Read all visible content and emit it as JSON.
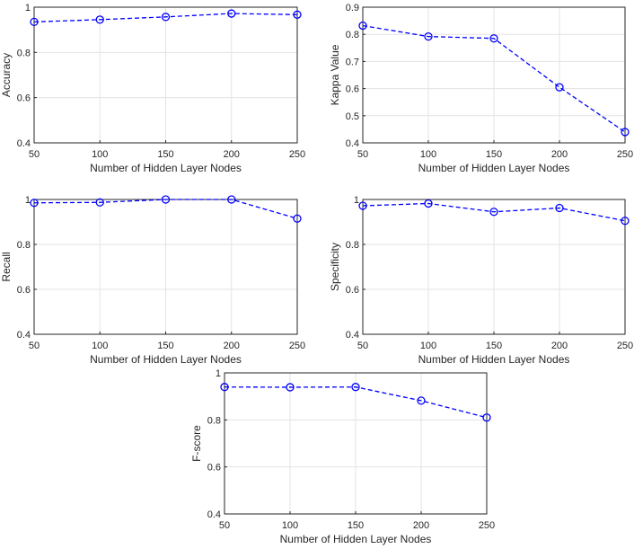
{
  "chart_data": [
    {
      "type": "line",
      "title": "",
      "xlabel": "Number of Hidden Layer Nodes",
      "ylabel": "Accuracy",
      "x": [
        50,
        100,
        150,
        200,
        250
      ],
      "xticks": [
        "50",
        "100",
        "150",
        "200",
        "250"
      ],
      "yticks": [
        "0.4",
        "0.6",
        "0.8",
        "1"
      ],
      "ytick_values": [
        0.4,
        0.6,
        0.8,
        1.0
      ],
      "ylim": [
        0.4,
        1.0
      ],
      "xlim": [
        50,
        250
      ],
      "grid": true,
      "series": [
        {
          "name": "Accuracy",
          "values": [
            0.935,
            0.945,
            0.957,
            0.972,
            0.967
          ]
        }
      ],
      "color": "#0000ff",
      "marker": "circle",
      "linestyle": "dashed"
    },
    {
      "type": "line",
      "title": "",
      "xlabel": "Number of Hidden Layer Nodes",
      "ylabel": "Kappa Value",
      "x": [
        50,
        100,
        150,
        200,
        250
      ],
      "xticks": [
        "50",
        "100",
        "150",
        "200",
        "250"
      ],
      "yticks": [
        "0.4",
        "0.5",
        "0.6",
        "0.7",
        "0.8",
        "0.9"
      ],
      "ytick_values": [
        0.4,
        0.5,
        0.6,
        0.7,
        0.8,
        0.9
      ],
      "ylim": [
        0.4,
        0.9
      ],
      "xlim": [
        50,
        250
      ],
      "grid": true,
      "series": [
        {
          "name": "Kappa Value",
          "values": [
            0.832,
            0.792,
            0.785,
            0.605,
            0.44
          ]
        }
      ],
      "color": "#0000ff",
      "marker": "circle",
      "linestyle": "dashed"
    },
    {
      "type": "line",
      "title": "",
      "xlabel": "Number of Hidden Layer Nodes",
      "ylabel": "Recall",
      "x": [
        50,
        100,
        150,
        200,
        250
      ],
      "xticks": [
        "50",
        "100",
        "150",
        "200",
        "250"
      ],
      "yticks": [
        "0.4",
        "0.6",
        "0.8",
        "1"
      ],
      "ytick_values": [
        0.4,
        0.6,
        0.8,
        1.0
      ],
      "ylim": [
        0.4,
        1.0
      ],
      "xlim": [
        50,
        250
      ],
      "grid": true,
      "series": [
        {
          "name": "Recall",
          "values": [
            0.985,
            0.987,
            1.0,
            1.0,
            0.915
          ]
        }
      ],
      "color": "#0000ff",
      "marker": "circle",
      "linestyle": "dashed"
    },
    {
      "type": "line",
      "title": "",
      "xlabel": "Number of Hidden Layer Nodes",
      "ylabel": "Specificity",
      "x": [
        50,
        100,
        150,
        200,
        250
      ],
      "xticks": [
        "50",
        "100",
        "150",
        "200",
        "250"
      ],
      "yticks": [
        "0.4",
        "0.6",
        "0.8",
        "1"
      ],
      "ytick_values": [
        0.4,
        0.6,
        0.8,
        1.0
      ],
      "ylim": [
        0.4,
        1.0
      ],
      "xlim": [
        50,
        250
      ],
      "grid": true,
      "series": [
        {
          "name": "Specificity",
          "values": [
            0.972,
            0.982,
            0.945,
            0.962,
            0.905
          ]
        }
      ],
      "color": "#0000ff",
      "marker": "circle",
      "linestyle": "dashed"
    },
    {
      "type": "line",
      "title": "",
      "xlabel": "Number of Hidden Layer Nodes",
      "ylabel": "F-score",
      "x": [
        50,
        100,
        150,
        200,
        250
      ],
      "xticks": [
        "50",
        "100",
        "150",
        "200",
        "250"
      ],
      "yticks": [
        "0.4",
        "0.6",
        "0.8",
        "1"
      ],
      "ytick_values": [
        0.4,
        0.6,
        0.8,
        1.0
      ],
      "ylim": [
        0.4,
        1.0
      ],
      "xlim": [
        50,
        250
      ],
      "grid": true,
      "series": [
        {
          "name": "F-score",
          "values": [
            0.94,
            0.939,
            0.94,
            0.882,
            0.81
          ]
        }
      ],
      "color": "#0000ff",
      "marker": "circle",
      "linestyle": "dashed"
    }
  ]
}
